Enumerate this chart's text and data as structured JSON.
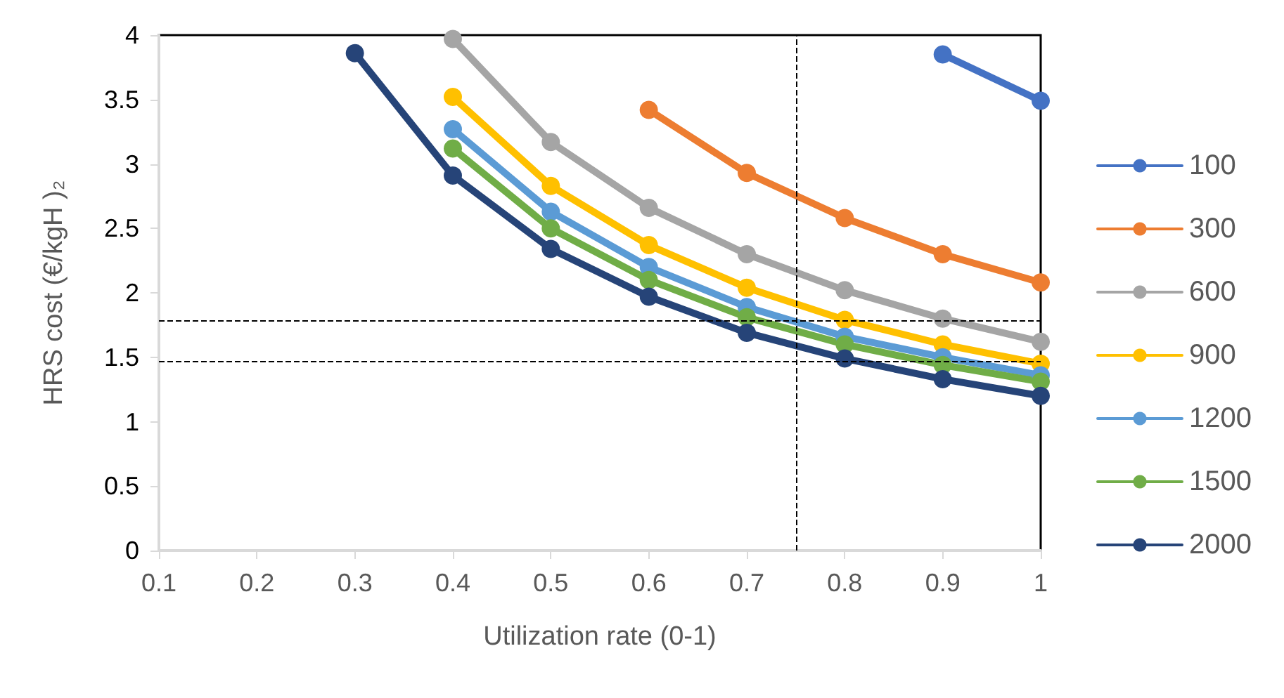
{
  "chart_data": {
    "type": "line",
    "xlabel": "Utilization rate (0-1)",
    "ylabel": "HRS cost (€/kgH )₂",
    "x": [
      0.3,
      0.4,
      0.5,
      0.6,
      0.7,
      0.8,
      0.9,
      1
    ],
    "series": [
      {
        "name": "100",
        "color": "#4472c4",
        "values": [
          null,
          null,
          null,
          null,
          null,
          null,
          3.85,
          3.49
        ]
      },
      {
        "name": "300",
        "color": "#ed7d31",
        "values": [
          null,
          null,
          null,
          3.42,
          2.93,
          2.58,
          2.3,
          2.08
        ]
      },
      {
        "name": "600",
        "color": "#a5a5a5",
        "values": [
          null,
          3.97,
          3.17,
          2.66,
          2.3,
          2.02,
          1.8,
          1.62
        ]
      },
      {
        "name": "900",
        "color": "#ffc000",
        "values": [
          null,
          3.52,
          2.83,
          2.37,
          2.04,
          1.79,
          1.6,
          1.45
        ]
      },
      {
        "name": "1200",
        "color": "#5b9bd5",
        "values": [
          null,
          3.27,
          2.63,
          2.2,
          1.89,
          1.66,
          1.5,
          1.36
        ]
      },
      {
        "name": "1500",
        "color": "#70ad47",
        "values": [
          null,
          3.12,
          2.5,
          2.1,
          1.81,
          1.6,
          1.44,
          1.31
        ]
      },
      {
        "name": "2000",
        "color": "#264478",
        "values": [
          3.86,
          2.91,
          2.34,
          1.97,
          1.69,
          1.49,
          1.33,
          1.2
        ]
      }
    ],
    "xlim": [
      0.1,
      1
    ],
    "xticks": [
      0.1,
      0.2,
      0.3,
      0.4,
      0.5,
      0.6,
      0.7,
      0.8,
      0.9,
      1
    ],
    "ylim": [
      0,
      4
    ],
    "yticks": [
      0,
      0.5,
      1,
      1.5,
      2,
      2.5,
      3,
      3.5,
      4
    ],
    "ref_lines": [
      {
        "axis": "y",
        "value": 1.78,
        "color": "#000000",
        "line_style": "dashed"
      },
      {
        "axis": "y",
        "value": 1.47,
        "color": "#000000",
        "line_style": "dashed"
      },
      {
        "axis": "x",
        "value": 0.75,
        "color": "#000000",
        "line_style": "dashed"
      }
    ],
    "marker": "circle",
    "line_style": "solid",
    "grid": false,
    "legend": "right"
  }
}
